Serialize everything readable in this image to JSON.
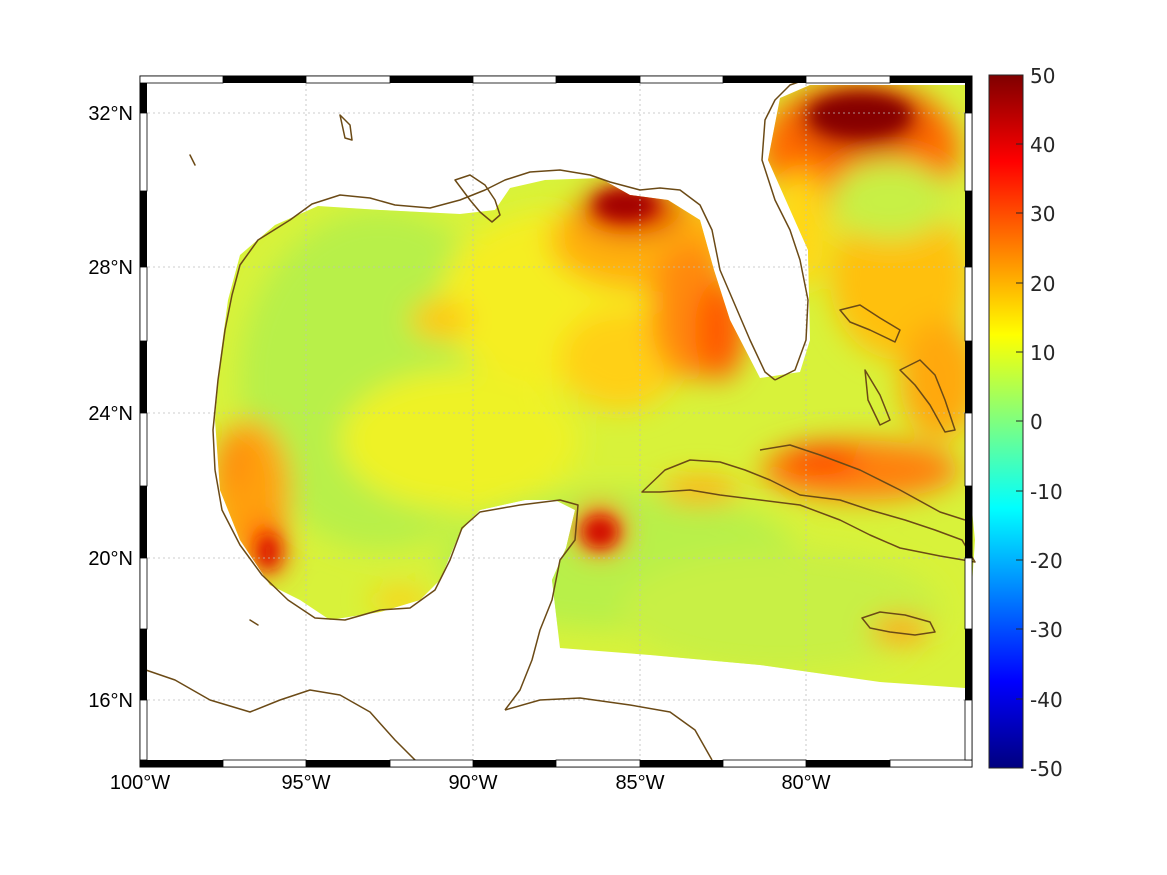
{
  "map": {
    "lon_labels": [
      "100°W",
      "95°W",
      "90°W",
      "85°W",
      "80°W"
    ],
    "lat_labels": [
      "32°N",
      "28°N",
      "24°N",
      "20°N",
      "16°N"
    ],
    "lon_range": [
      -100,
      -75.2
    ],
    "lat_range": [
      14.2,
      33
    ]
  },
  "colorbar": {
    "colormap": "jet",
    "range": [
      -50,
      50
    ],
    "ticks": [
      "50",
      "40",
      "30",
      "20",
      "10",
      "0",
      "-10",
      "-20",
      "-30",
      "-40",
      "-50"
    ],
    "colors": [
      "#00007f",
      "#0000ff",
      "#007fff",
      "#00ffff",
      "#7fff7f",
      "#ffff00",
      "#ff7f00",
      "#ff0000",
      "#7f0000"
    ]
  },
  "colors": {
    "coastline": "#6b4a16",
    "background": "#ffffff"
  }
}
